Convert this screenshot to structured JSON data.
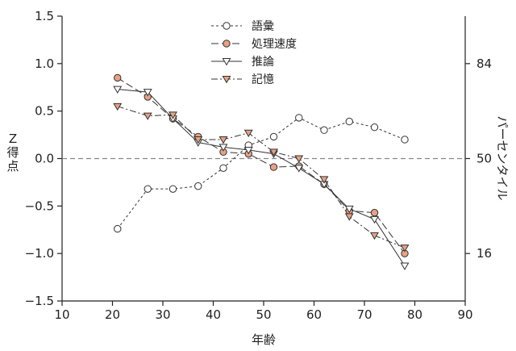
{
  "chart_data": {
    "type": "line",
    "xlabel": "年齢",
    "ylabel": "Z得点",
    "y2label": "パーセンタイル",
    "xlim": [
      10,
      90
    ],
    "ylim": [
      -1.5,
      1.5
    ],
    "xticks": [
      10,
      20,
      30,
      40,
      50,
      60,
      70,
      80,
      90
    ],
    "yticks": [
      1.5,
      1.0,
      0.5,
      0.0,
      -0.5,
      -1.0,
      -1.5
    ],
    "ytick_labels": [
      "1.5",
      "1.0",
      "0.5",
      "0.0",
      "−0.5",
      "−1.0",
      "−1.5"
    ],
    "y2ticks": [
      {
        "label": "84",
        "at": 1.0
      },
      {
        "label": "50",
        "at": 0.0
      },
      {
        "label": "16",
        "at": -1.0
      }
    ],
    "reference_line": 0.0,
    "grid": false,
    "legend_position": "top-center",
    "series": [
      {
        "name": "語彙",
        "color": "#333333",
        "fill": "#ffffff",
        "marker": "circle",
        "dash": "3 3",
        "x": [
          21,
          27,
          32,
          37,
          42,
          47,
          52,
          57,
          62,
          67,
          72,
          78
        ],
        "y": [
          -0.74,
          -0.32,
          -0.32,
          -0.29,
          -0.1,
          0.14,
          0.23,
          0.43,
          0.3,
          0.39,
          0.33,
          0.2
        ]
      },
      {
        "name": "処理速度",
        "color": "#333333",
        "fill": "#e8a183",
        "marker": "circle",
        "dash": "9 4",
        "x": [
          21,
          27,
          32,
          37,
          42,
          47,
          52,
          57,
          62,
          67,
          72,
          78
        ],
        "y": [
          0.85,
          0.65,
          0.42,
          0.23,
          0.07,
          0.05,
          -0.09,
          -0.08,
          -0.27,
          -0.55,
          -0.57,
          -1.0
        ]
      },
      {
        "name": "推論",
        "color": "#333333",
        "fill": "#ffffff",
        "marker": "triangle-down",
        "dash": "",
        "x": [
          21,
          27,
          32,
          37,
          42,
          47,
          52,
          57,
          62,
          67,
          72,
          78
        ],
        "y": [
          0.73,
          0.7,
          0.42,
          0.17,
          0.12,
          0.09,
          0.05,
          -0.1,
          -0.27,
          -0.53,
          -0.64,
          -1.13
        ]
      },
      {
        "name": "記憶",
        "color": "#333333",
        "fill": "#e8a183",
        "marker": "triangle-down",
        "dash": "8 3 2 3",
        "x": [
          21,
          27,
          32,
          37,
          42,
          47,
          52,
          57,
          62,
          67,
          72,
          78
        ],
        "y": [
          0.55,
          0.45,
          0.46,
          0.2,
          0.2,
          0.27,
          0.07,
          0.0,
          -0.22,
          -0.61,
          -0.81,
          -0.94
        ]
      }
    ]
  }
}
